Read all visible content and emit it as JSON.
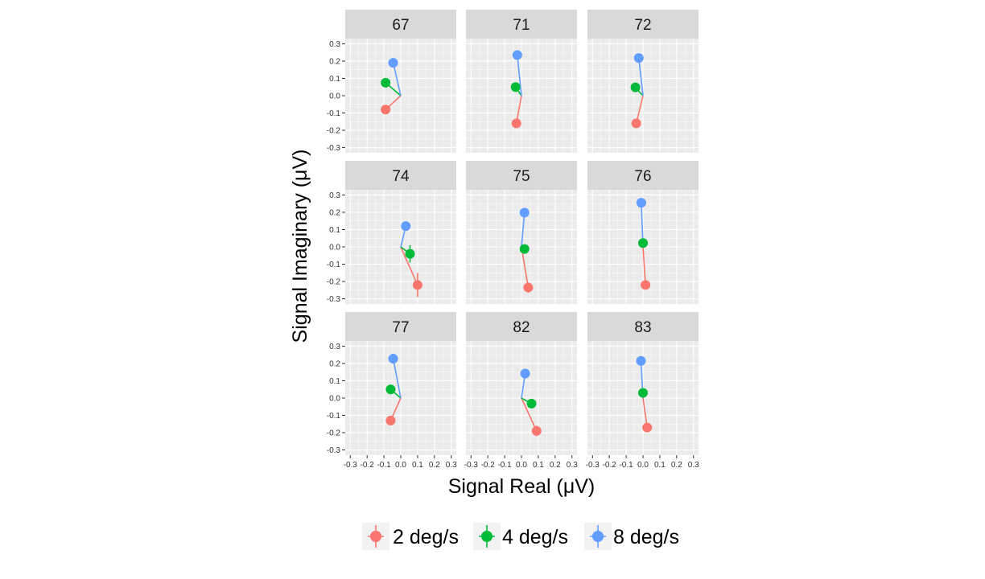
{
  "chart_data": {
    "type": "scatter",
    "xlabel": "Signal Real (μV)",
    "ylabel": "Signal Imaginary (μV)",
    "xlim": [
      -0.3,
      0.3
    ],
    "ylim": [
      -0.3,
      0.3
    ],
    "ticks": [
      -0.3,
      -0.2,
      -0.1,
      0.0,
      0.1,
      0.2,
      0.3
    ],
    "x_tick_labels": [
      "-0.3",
      "-0.2",
      "-0.1",
      "0.0",
      "0.1",
      "0.2",
      "0.3"
    ],
    "y_tick_labels": [
      "0.3",
      "0.2",
      "0.1",
      "0.0",
      "-0.1",
      "-0.2",
      "-0.3"
    ],
    "grid": true,
    "legend": {
      "position": "bottom",
      "entries": [
        {
          "label": "2 deg/s",
          "color": "#F8766D"
        },
        {
          "label": "4 deg/s",
          "color": "#00BA38"
        },
        {
          "label": "8 deg/s",
          "color": "#619CFF"
        }
      ]
    },
    "panels": [
      {
        "label": "67",
        "points": [
          {
            "x": -0.09,
            "y": -0.08,
            "xerr": 0.01,
            "yerr": 0.015
          },
          {
            "x": -0.09,
            "y": 0.075,
            "xerr": 0.015,
            "yerr": 0.01
          },
          {
            "x": -0.045,
            "y": 0.19,
            "xerr": 0.015,
            "yerr": 0.015
          }
        ]
      },
      {
        "label": "71",
        "points": [
          {
            "x": -0.03,
            "y": -0.16,
            "xerr": 0.01,
            "yerr": 0.015
          },
          {
            "x": -0.035,
            "y": 0.05,
            "xerr": 0.02,
            "yerr": 0.01
          },
          {
            "x": -0.025,
            "y": 0.235,
            "xerr": 0.015,
            "yerr": 0.01
          }
        ]
      },
      {
        "label": "72",
        "points": [
          {
            "x": -0.04,
            "y": -0.16,
            "xerr": 0.01,
            "yerr": 0.015
          },
          {
            "x": -0.045,
            "y": 0.048,
            "xerr": 0.015,
            "yerr": 0.01
          },
          {
            "x": -0.025,
            "y": 0.218,
            "xerr": 0.02,
            "yerr": 0.01
          }
        ]
      },
      {
        "label": "74",
        "points": [
          {
            "x": 0.1,
            "y": -0.22,
            "xerr": 0.015,
            "yerr": 0.07
          },
          {
            "x": 0.055,
            "y": -0.04,
            "xerr": 0.015,
            "yerr": 0.05
          },
          {
            "x": 0.03,
            "y": 0.12,
            "xerr": 0.01,
            "yerr": 0.01
          }
        ]
      },
      {
        "label": "75",
        "points": [
          {
            "x": 0.04,
            "y": -0.235,
            "xerr": 0.015,
            "yerr": 0.03
          },
          {
            "x": 0.018,
            "y": -0.012,
            "xerr": 0.01,
            "yerr": 0.015
          },
          {
            "x": 0.018,
            "y": 0.198,
            "xerr": 0.01,
            "yerr": 0.01
          }
        ]
      },
      {
        "label": "76",
        "points": [
          {
            "x": 0.015,
            "y": -0.22,
            "xerr": 0.015,
            "yerr": 0.02
          },
          {
            "x": 0.0,
            "y": 0.022,
            "xerr": 0.02,
            "yerr": 0.01
          },
          {
            "x": -0.01,
            "y": 0.255,
            "xerr": 0.02,
            "yerr": 0.01
          }
        ]
      },
      {
        "label": "77",
        "points": [
          {
            "x": -0.06,
            "y": -0.13,
            "xerr": 0.01,
            "yerr": 0.025
          },
          {
            "x": -0.06,
            "y": 0.05,
            "xerr": 0.02,
            "yerr": 0.01
          },
          {
            "x": -0.045,
            "y": 0.228,
            "xerr": 0.025,
            "yerr": 0.01
          }
        ]
      },
      {
        "label": "82",
        "points": [
          {
            "x": 0.09,
            "y": -0.19,
            "xerr": 0.015,
            "yerr": 0.03
          },
          {
            "x": 0.06,
            "y": -0.032,
            "xerr": 0.01,
            "yerr": 0.01
          },
          {
            "x": 0.022,
            "y": 0.142,
            "xerr": 0.01,
            "yerr": 0.01
          }
        ]
      },
      {
        "label": "83",
        "points": [
          {
            "x": 0.025,
            "y": -0.17,
            "xerr": 0.02,
            "yerr": 0.02
          },
          {
            "x": 0.0,
            "y": 0.03,
            "xerr": 0.015,
            "yerr": 0.01
          },
          {
            "x": -0.012,
            "y": 0.215,
            "xerr": 0.02,
            "yerr": 0.01
          }
        ]
      }
    ]
  }
}
